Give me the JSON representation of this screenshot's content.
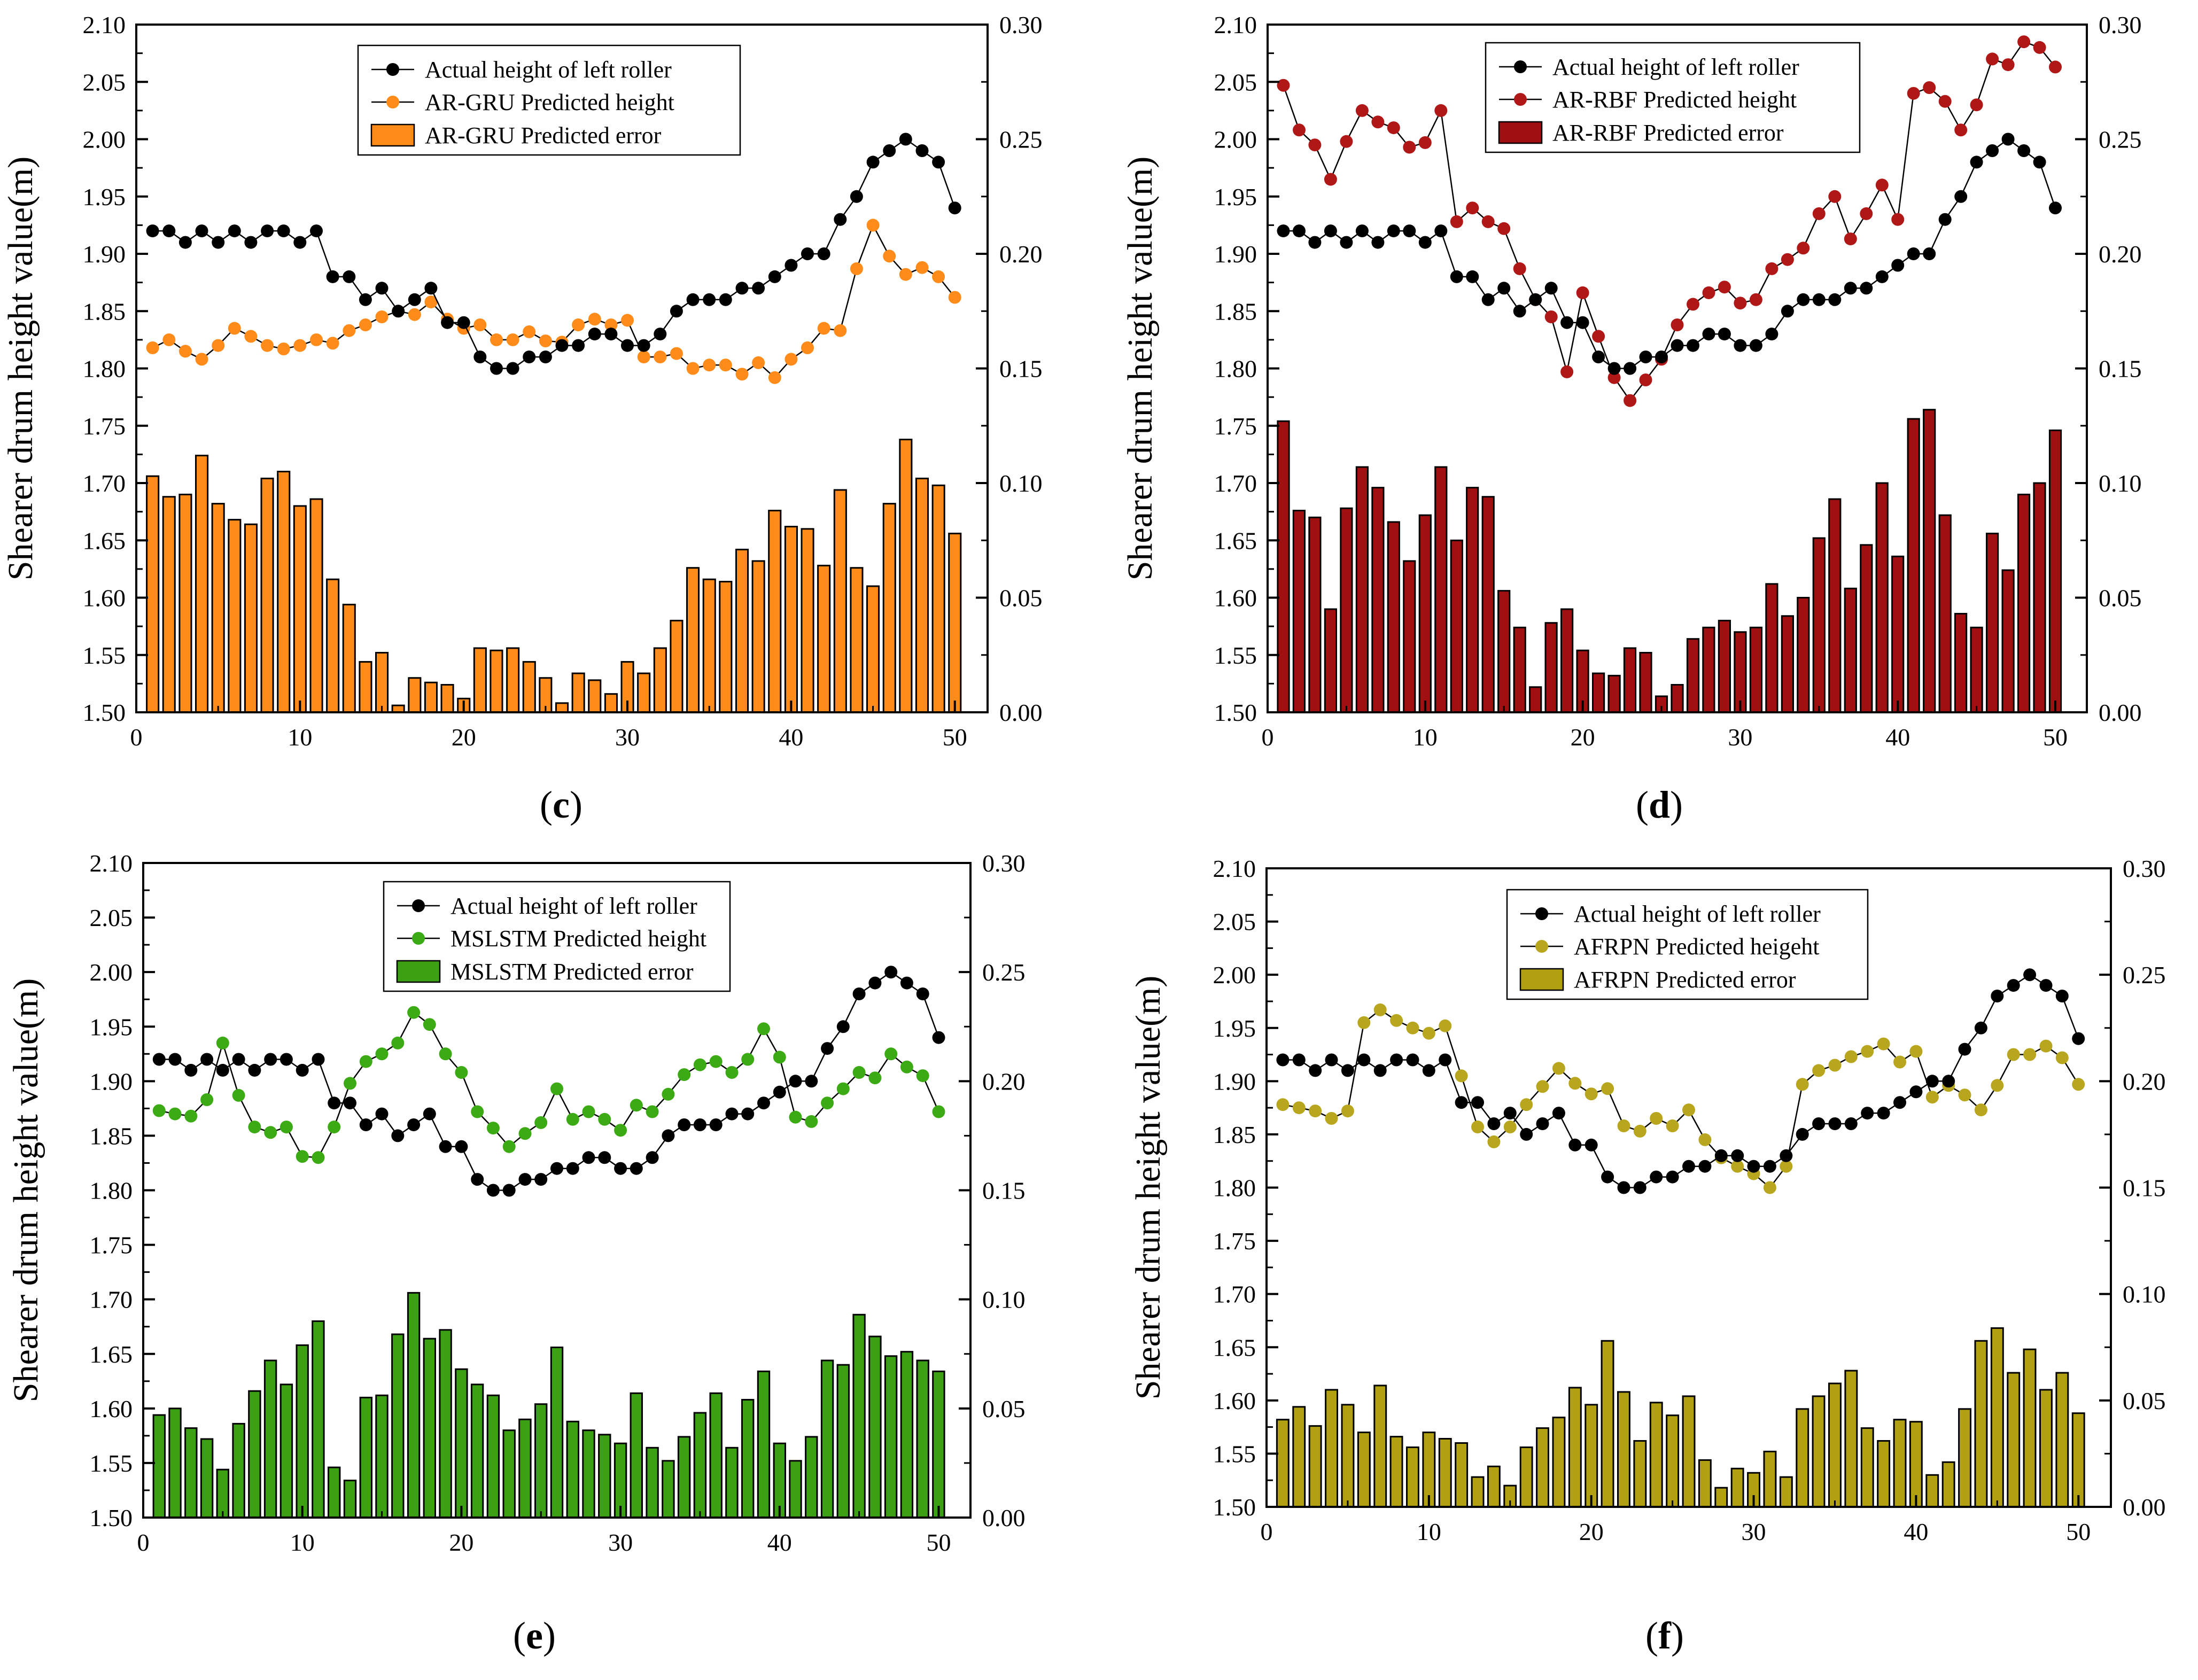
{
  "figure": {
    "y_axis_label": "Shearer drum height value(m)",
    "x_ticks": [
      "0",
      "10",
      "20",
      "30",
      "40",
      "50"
    ],
    "left_ticks": [
      "1.50",
      "1.55",
      "1.60",
      "1.65",
      "1.70",
      "1.75",
      "1.80",
      "1.85",
      "1.90",
      "1.95",
      "2.00",
      "2.05",
      "2.10"
    ],
    "right_ticks": [
      "0.00",
      "0.05",
      "0.10",
      "0.15",
      "0.20",
      "0.25",
      "0.30"
    ]
  },
  "chart_data": [
    {
      "type": "bar",
      "caption": "c",
      "title": "",
      "xlabel": "",
      "ylabel": "Shearer drum height value(m)",
      "xlim": [
        0,
        52
      ],
      "ylim": [
        1.5,
        2.1
      ],
      "y2lim": [
        0,
        0.3
      ],
      "colors": {
        "actual": "#000000",
        "predicted": "#ff8c1a",
        "bar": "#ff8c1a"
      },
      "legend": [
        "Actual height of left roller",
        "AR-GRU Predicted height",
        "AR-GRU Predicted error"
      ],
      "x": [
        1,
        2,
        3,
        4,
        5,
        6,
        7,
        8,
        9,
        10,
        11,
        12,
        13,
        14,
        15,
        16,
        17,
        18,
        19,
        20,
        21,
        22,
        23,
        24,
        25,
        26,
        27,
        28,
        29,
        30,
        31,
        32,
        33,
        34,
        35,
        36,
        37,
        38,
        39,
        40,
        41,
        42,
        43,
        44,
        45,
        46,
        47,
        48,
        49,
        50
      ],
      "series": [
        {
          "name": "Actual height of left roller",
          "axis": "left",
          "kind": "line",
          "values": [
            1.92,
            1.92,
            1.91,
            1.92,
            1.91,
            1.92,
            1.91,
            1.92,
            1.92,
            1.91,
            1.92,
            1.88,
            1.88,
            1.86,
            1.87,
            1.85,
            1.86,
            1.87,
            1.84,
            1.84,
            1.81,
            1.8,
            1.8,
            1.81,
            1.81,
            1.82,
            1.82,
            1.83,
            1.83,
            1.82,
            1.82,
            1.83,
            1.85,
            1.86,
            1.86,
            1.86,
            1.87,
            1.87,
            1.88,
            1.89,
            1.9,
            1.9,
            1.93,
            1.95,
            1.98,
            1.99,
            2.0,
            1.99,
            1.98,
            1.94
          ]
        },
        {
          "name": "AR-GRU Predicted height",
          "axis": "left",
          "kind": "line",
          "values": [
            1.818,
            1.825,
            1.815,
            1.808,
            1.82,
            1.835,
            1.828,
            1.82,
            1.817,
            1.82,
            1.825,
            1.822,
            1.833,
            1.838,
            1.845,
            1.85,
            1.847,
            1.858,
            1.843,
            1.835,
            1.838,
            1.825,
            1.825,
            1.832,
            1.824,
            1.823,
            1.838,
            1.843,
            1.838,
            1.842,
            1.81,
            1.81,
            1.813,
            1.8,
            1.803,
            1.803,
            1.795,
            1.805,
            1.792,
            1.808,
            1.818,
            1.835,
            1.833,
            1.887,
            1.925,
            1.898,
            1.882,
            1.888,
            1.88,
            1.862
          ]
        },
        {
          "name": "AR-GRU Predicted error",
          "axis": "right",
          "kind": "bar",
          "values": [
            0.103,
            0.094,
            0.095,
            0.112,
            0.091,
            0.084,
            0.082,
            0.102,
            0.105,
            0.09,
            0.093,
            0.058,
            0.047,
            0.022,
            0.026,
            0.003,
            0.015,
            0.013,
            0.012,
            0.006,
            0.028,
            0.027,
            0.028,
            0.022,
            0.015,
            0.004,
            0.017,
            0.014,
            0.008,
            0.022,
            0.017,
            0.028,
            0.04,
            0.063,
            0.058,
            0.057,
            0.071,
            0.066,
            0.088,
            0.081,
            0.08,
            0.064,
            0.097,
            0.063,
            0.055,
            0.091,
            0.119,
            0.102,
            0.099,
            0.078
          ]
        }
      ]
    },
    {
      "type": "bar",
      "caption": "d",
      "title": "",
      "xlabel": "",
      "ylabel": "Shearer drum height value(m)",
      "xlim": [
        0,
        52
      ],
      "ylim": [
        1.5,
        2.1
      ],
      "y2lim": [
        0,
        0.3
      ],
      "colors": {
        "actual": "#000000",
        "predicted": "#b01818",
        "bar": "#a01010"
      },
      "legend": [
        "Actual height of left roller",
        "AR-RBF Predicted height",
        "AR-RBF Predicted error"
      ],
      "x": [
        1,
        2,
        3,
        4,
        5,
        6,
        7,
        8,
        9,
        10,
        11,
        12,
        13,
        14,
        15,
        16,
        17,
        18,
        19,
        20,
        21,
        22,
        23,
        24,
        25,
        26,
        27,
        28,
        29,
        30,
        31,
        32,
        33,
        34,
        35,
        36,
        37,
        38,
        39,
        40,
        41,
        42,
        43,
        44,
        45,
        46,
        47,
        48,
        49,
        50
      ],
      "series": [
        {
          "name": "Actual height of left roller",
          "axis": "left",
          "kind": "line",
          "values": [
            1.92,
            1.92,
            1.91,
            1.92,
            1.91,
            1.92,
            1.91,
            1.92,
            1.92,
            1.91,
            1.92,
            1.88,
            1.88,
            1.86,
            1.87,
            1.85,
            1.86,
            1.87,
            1.84,
            1.84,
            1.81,
            1.8,
            1.8,
            1.81,
            1.81,
            1.82,
            1.82,
            1.83,
            1.83,
            1.82,
            1.82,
            1.83,
            1.85,
            1.86,
            1.86,
            1.86,
            1.87,
            1.87,
            1.88,
            1.89,
            1.9,
            1.9,
            1.93,
            1.95,
            1.98,
            1.99,
            2.0,
            1.99,
            1.98,
            1.94
          ]
        },
        {
          "name": "AR-RBF Predicted height",
          "axis": "left",
          "kind": "line",
          "values": [
            2.047,
            2.008,
            1.995,
            1.965,
            1.998,
            2.025,
            2.015,
            2.01,
            1.993,
            1.997,
            2.025,
            1.928,
            1.94,
            1.928,
            1.922,
            1.887,
            1.86,
            1.845,
            1.797,
            1.866,
            1.828,
            1.792,
            1.772,
            1.79,
            1.808,
            1.838,
            1.856,
            1.866,
            1.871,
            1.857,
            1.86,
            1.887,
            1.895,
            1.905,
            1.935,
            1.95,
            1.913,
            1.935,
            1.96,
            1.93,
            2.04,
            2.045,
            2.033,
            2.008,
            2.03,
            2.07,
            2.065,
            2.085,
            2.08,
            2.063
          ]
        },
        {
          "name": "AR-RBF Predicted error",
          "axis": "right",
          "kind": "bar",
          "values": [
            0.127,
            0.088,
            0.085,
            0.045,
            0.089,
            0.107,
            0.098,
            0.083,
            0.066,
            0.086,
            0.107,
            0.075,
            0.098,
            0.094,
            0.053,
            0.037,
            0.011,
            0.039,
            0.045,
            0.027,
            0.017,
            0.016,
            0.028,
            0.026,
            0.007,
            0.012,
            0.032,
            0.037,
            0.04,
            0.035,
            0.037,
            0.056,
            0.042,
            0.05,
            0.076,
            0.093,
            0.054,
            0.073,
            0.1,
            0.068,
            0.128,
            0.132,
            0.086,
            0.043,
            0.037,
            0.078,
            0.062,
            0.095,
            0.1,
            0.123
          ]
        }
      ]
    },
    {
      "type": "bar",
      "caption": "e",
      "title": "",
      "xlabel": "",
      "ylabel": "Shearer drum height value(m)",
      "xlim": [
        0,
        52
      ],
      "ylim": [
        1.5,
        2.1
      ],
      "y2lim": [
        0,
        0.3
      ],
      "colors": {
        "actual": "#000000",
        "predicted": "#3caa14",
        "bar": "#3ca014"
      },
      "legend": [
        "Actual height of left roller",
        "MSLSTM Predicted height",
        "MSLSTM Predicted error"
      ],
      "x": [
        1,
        2,
        3,
        4,
        5,
        6,
        7,
        8,
        9,
        10,
        11,
        12,
        13,
        14,
        15,
        16,
        17,
        18,
        19,
        20,
        21,
        22,
        23,
        24,
        25,
        26,
        27,
        28,
        29,
        30,
        31,
        32,
        33,
        34,
        35,
        36,
        37,
        38,
        39,
        40,
        41,
        42,
        43,
        44,
        45,
        46,
        47,
        48,
        49,
        50
      ],
      "series": [
        {
          "name": "Actual height of left roller",
          "axis": "left",
          "kind": "line",
          "values": [
            1.92,
            1.92,
            1.91,
            1.92,
            1.91,
            1.92,
            1.91,
            1.92,
            1.92,
            1.91,
            1.92,
            1.88,
            1.88,
            1.86,
            1.87,
            1.85,
            1.86,
            1.87,
            1.84,
            1.84,
            1.81,
            1.8,
            1.8,
            1.81,
            1.81,
            1.82,
            1.82,
            1.83,
            1.83,
            1.82,
            1.82,
            1.83,
            1.85,
            1.86,
            1.86,
            1.86,
            1.87,
            1.87,
            1.88,
            1.89,
            1.9,
            1.9,
            1.93,
            1.95,
            1.98,
            1.99,
            2.0,
            1.99,
            1.98,
            1.94
          ]
        },
        {
          "name": "MSLSTM Predicted height",
          "axis": "left",
          "kind": "line",
          "values": [
            1.873,
            1.87,
            1.868,
            1.883,
            1.935,
            1.887,
            1.858,
            1.853,
            1.858,
            1.831,
            1.83,
            1.858,
            1.898,
            1.918,
            1.925,
            1.935,
            1.963,
            1.952,
            1.925,
            1.908,
            1.872,
            1.857,
            1.84,
            1.852,
            1.862,
            1.893,
            1.865,
            1.872,
            1.865,
            1.855,
            1.878,
            1.872,
            1.888,
            1.906,
            1.915,
            1.918,
            1.908,
            1.92,
            1.948,
            1.922,
            1.867,
            1.863,
            1.88,
            1.893,
            1.908,
            1.903,
            1.925,
            1.913,
            1.905,
            1.872
          ]
        },
        {
          "name": "MSLSTM Predicted error",
          "axis": "right",
          "kind": "bar",
          "values": [
            0.047,
            0.05,
            0.041,
            0.036,
            0.022,
            0.043,
            0.058,
            0.072,
            0.061,
            0.079,
            0.09,
            0.023,
            0.017,
            0.055,
            0.056,
            0.084,
            0.103,
            0.082,
            0.086,
            0.068,
            0.061,
            0.056,
            0.04,
            0.045,
            0.052,
            0.078,
            0.044,
            0.04,
            0.038,
            0.034,
            0.057,
            0.032,
            0.026,
            0.037,
            0.048,
            0.057,
            0.032,
            0.054,
            0.067,
            0.034,
            0.026,
            0.037,
            0.072,
            0.07,
            0.093,
            0.083,
            0.074,
            0.076,
            0.072,
            0.067
          ]
        }
      ]
    },
    {
      "type": "bar",
      "caption": "f",
      "title": "",
      "xlabel": "",
      "ylabel": "Shearer drum height value(m)",
      "xlim": [
        0,
        52
      ],
      "ylim": [
        1.5,
        2.1
      ],
      "y2lim": [
        0,
        0.3
      ],
      "colors": {
        "actual": "#000000",
        "predicted": "#b8a61e",
        "bar": "#b0a012"
      },
      "legend": [
        "Actual height of left roller",
        "AFRPN Predicted heigeht",
        "AFRPN Predicted error"
      ],
      "x": [
        1,
        2,
        3,
        4,
        5,
        6,
        7,
        8,
        9,
        10,
        11,
        12,
        13,
        14,
        15,
        16,
        17,
        18,
        19,
        20,
        21,
        22,
        23,
        24,
        25,
        26,
        27,
        28,
        29,
        30,
        31,
        32,
        33,
        34,
        35,
        36,
        37,
        38,
        39,
        40,
        41,
        42,
        43,
        44,
        45,
        46,
        47,
        48,
        49,
        50
      ],
      "series": [
        {
          "name": "Actual height of left roller",
          "axis": "left",
          "kind": "line",
          "values": [
            1.92,
            1.92,
            1.91,
            1.92,
            1.91,
            1.92,
            1.91,
            1.92,
            1.92,
            1.91,
            1.92,
            1.88,
            1.88,
            1.86,
            1.87,
            1.85,
            1.86,
            1.87,
            1.84,
            1.84,
            1.81,
            1.8,
            1.8,
            1.81,
            1.81,
            1.82,
            1.82,
            1.83,
            1.83,
            1.82,
            1.82,
            1.83,
            1.85,
            1.86,
            1.86,
            1.86,
            1.87,
            1.87,
            1.88,
            1.89,
            1.9,
            1.9,
            1.93,
            1.95,
            1.98,
            1.99,
            2.0,
            1.99,
            1.98,
            1.94
          ]
        },
        {
          "name": "AFRPN Predicted heigeht",
          "axis": "left",
          "kind": "line",
          "values": [
            1.878,
            1.875,
            1.872,
            1.865,
            1.872,
            1.955,
            1.967,
            1.957,
            1.95,
            1.945,
            1.952,
            1.905,
            1.857,
            1.843,
            1.857,
            1.878,
            1.895,
            1.912,
            1.898,
            1.888,
            1.893,
            1.858,
            1.853,
            1.865,
            1.858,
            1.873,
            1.845,
            1.828,
            1.82,
            1.813,
            1.8,
            1.82,
            1.897,
            1.91,
            1.915,
            1.923,
            1.928,
            1.935,
            1.918,
            1.928,
            1.885,
            1.896,
            1.887,
            1.873,
            1.896,
            1.925,
            1.925,
            1.933,
            1.922,
            1.897
          ]
        },
        {
          "name": "AFRPN Predicted error",
          "axis": "right",
          "kind": "bar",
          "values": [
            0.041,
            0.047,
            0.038,
            0.055,
            0.048,
            0.035,
            0.057,
            0.033,
            0.028,
            0.035,
            0.032,
            0.03,
            0.014,
            0.019,
            0.01,
            0.028,
            0.037,
            0.042,
            0.056,
            0.048,
            0.078,
            0.054,
            0.031,
            0.049,
            0.043,
            0.052,
            0.022,
            0.009,
            0.018,
            0.016,
            0.026,
            0.014,
            0.046,
            0.052,
            0.058,
            0.064,
            0.037,
            0.031,
            0.041,
            0.04,
            0.015,
            0.021,
            0.046,
            0.078,
            0.084,
            0.063,
            0.074,
            0.055,
            0.063,
            0.044
          ]
        }
      ]
    }
  ]
}
